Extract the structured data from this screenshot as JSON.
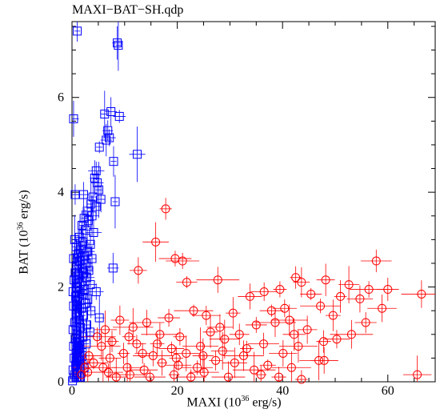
{
  "chart_data": {
    "type": "scatter",
    "title": "MAXI−BAT−SH.qdp",
    "xlabel_main": "MAXI (10",
    "xlabel_exp": "36",
    "xlabel_tail": " erg/s)",
    "ylabel_main": "BAT (10",
    "ylabel_exp": "36",
    "ylabel_tail": " erg/s)",
    "xlim": [
      0,
      69
    ],
    "ylim": [
      0,
      7.6
    ],
    "xticks": [
      0,
      20,
      40,
      60
    ],
    "yticks": [
      0,
      2,
      4,
      6
    ],
    "grid": false,
    "series": [
      {
        "marker": "square",
        "color": "#0000ff",
        "points": [
          [
            0.3,
            5.55
          ],
          [
            1.0,
            7.4
          ],
          [
            8.6,
            7.15
          ],
          [
            8.8,
            7.1
          ],
          [
            7.4,
            5.7
          ],
          [
            6.2,
            5.65
          ],
          [
            9.0,
            5.6
          ],
          [
            6.8,
            5.3
          ],
          [
            7.1,
            5.15
          ],
          [
            6.5,
            5.1
          ],
          [
            5.2,
            4.95
          ],
          [
            12.4,
            4.8
          ],
          [
            7.9,
            4.65
          ],
          [
            4.6,
            4.45
          ],
          [
            4.3,
            4.3
          ],
          [
            4.8,
            4.2
          ],
          [
            5.1,
            4.05
          ],
          [
            0.6,
            3.95
          ],
          [
            2.2,
            3.95
          ],
          [
            4.0,
            3.9
          ],
          [
            5.5,
            3.85
          ],
          [
            8.2,
            3.8
          ],
          [
            3.6,
            3.75
          ],
          [
            4.6,
            3.7
          ],
          [
            2.9,
            3.6
          ],
          [
            3.8,
            3.5
          ],
          [
            2.3,
            3.45
          ],
          [
            3.1,
            3.4
          ],
          [
            1.9,
            3.3
          ],
          [
            2.6,
            3.2
          ],
          [
            4.1,
            3.15
          ],
          [
            1.4,
            3.05
          ],
          [
            0.5,
            3.0
          ],
          [
            2.1,
            2.95
          ],
          [
            3.5,
            2.9
          ],
          [
            0.8,
            2.85
          ],
          [
            1.7,
            2.8
          ],
          [
            2.9,
            2.75
          ],
          [
            1.2,
            2.7
          ],
          [
            2.4,
            2.65
          ],
          [
            0.3,
            2.6
          ],
          [
            3.8,
            2.6
          ],
          [
            1.5,
            2.55
          ],
          [
            2.7,
            2.5
          ],
          [
            0.9,
            2.45
          ],
          [
            1.9,
            2.4
          ],
          [
            7.8,
            2.4
          ],
          [
            3.2,
            2.35
          ],
          [
            0.6,
            2.3
          ],
          [
            2.2,
            2.3
          ],
          [
            1.3,
            2.25
          ],
          [
            2.8,
            2.2
          ],
          [
            0.4,
            2.15
          ],
          [
            1.7,
            2.1
          ],
          [
            3.5,
            2.05
          ],
          [
            0.9,
            2.0
          ],
          [
            2.4,
            1.95
          ],
          [
            0.2,
            1.9
          ],
          [
            1.4,
            1.9
          ],
          [
            4.6,
            1.9
          ],
          [
            2.0,
            1.85
          ],
          [
            0.7,
            1.8
          ],
          [
            3.0,
            1.75
          ],
          [
            1.1,
            1.7
          ],
          [
            2.5,
            1.65
          ],
          [
            0.3,
            1.6
          ],
          [
            1.8,
            1.55
          ],
          [
            3.6,
            1.5
          ],
          [
            0.8,
            1.45
          ],
          [
            2.2,
            1.4
          ],
          [
            5.2,
            1.35
          ],
          [
            1.3,
            1.3
          ],
          [
            0.5,
            1.25
          ],
          [
            2.8,
            1.2
          ],
          [
            1.6,
            1.15
          ],
          [
            0.2,
            1.1
          ],
          [
            3.4,
            1.05
          ],
          [
            1.0,
            1.0
          ],
          [
            2.1,
            0.95
          ],
          [
            0.6,
            0.9
          ],
          [
            1.5,
            0.85
          ],
          [
            2.7,
            0.8
          ],
          [
            0.3,
            0.75
          ],
          [
            1.2,
            0.7
          ],
          [
            0.8,
            0.6
          ],
          [
            1.9,
            0.55
          ],
          [
            0.4,
            0.5
          ],
          [
            1.3,
            0.45
          ],
          [
            0.7,
            0.35
          ],
          [
            2.3,
            0.3
          ],
          [
            0.2,
            0.25
          ],
          [
            1.0,
            0.2
          ],
          [
            0.5,
            0.15
          ],
          [
            0.3,
            0.08
          ],
          [
            1.6,
            0.1
          ],
          [
            0.1,
            0.02
          ]
        ]
      },
      {
        "marker": "circle",
        "color": "#ff0000",
        "points": [
          [
            17.8,
            3.65
          ],
          [
            15.9,
            2.95
          ],
          [
            19.6,
            2.6
          ],
          [
            21.0,
            2.55
          ],
          [
            12.6,
            2.35
          ],
          [
            21.8,
            2.1
          ],
          [
            27.7,
            2.15
          ],
          [
            42.5,
            2.2
          ],
          [
            43.6,
            2.1
          ],
          [
            48.2,
            2.15
          ],
          [
            52.6,
            2.05
          ],
          [
            57.8,
            2.55
          ],
          [
            56.4,
            1.95
          ],
          [
            60.0,
            1.95
          ],
          [
            66.4,
            1.85
          ],
          [
            39.5,
            1.95
          ],
          [
            36.5,
            1.9
          ],
          [
            33.8,
            1.8
          ],
          [
            45.4,
            1.85
          ],
          [
            51.0,
            1.8
          ],
          [
            54.7,
            1.75
          ],
          [
            47.2,
            1.6
          ],
          [
            40.4,
            1.55
          ],
          [
            37.9,
            1.5
          ],
          [
            30.6,
            1.45
          ],
          [
            23.1,
            1.5
          ],
          [
            25.5,
            1.4
          ],
          [
            18.4,
            1.35
          ],
          [
            14.2,
            1.25
          ],
          [
            9.1,
            1.3
          ],
          [
            11.6,
            1.15
          ],
          [
            6.3,
            1.1
          ],
          [
            16.7,
            1.0
          ],
          [
            20.5,
            0.95
          ],
          [
            26.3,
            1.05
          ],
          [
            29.0,
            0.9
          ],
          [
            31.8,
            1.0
          ],
          [
            35.0,
            1.2
          ],
          [
            38.6,
            1.25
          ],
          [
            41.3,
            1.3
          ],
          [
            44.7,
            1.1
          ],
          [
            49.6,
            1.4
          ],
          [
            53.1,
            1.0
          ],
          [
            55.8,
            1.25
          ],
          [
            58.9,
            1.55
          ],
          [
            47.8,
            0.85
          ],
          [
            43.0,
            0.75
          ],
          [
            40.1,
            0.6
          ],
          [
            36.4,
            0.8
          ],
          [
            33.2,
            0.7
          ],
          [
            28.6,
            0.65
          ],
          [
            24.4,
            0.75
          ],
          [
            21.7,
            0.6
          ],
          [
            18.9,
            0.7
          ],
          [
            15.4,
            0.55
          ],
          [
            12.3,
            0.8
          ],
          [
            9.8,
            0.6
          ],
          [
            7.2,
            0.5
          ],
          [
            5.6,
            0.75
          ],
          [
            4.1,
            0.4
          ],
          [
            3.2,
            0.55
          ],
          [
            2.4,
            0.3
          ],
          [
            1.8,
            0.15
          ],
          [
            6.9,
            0.2
          ],
          [
            10.5,
            0.3
          ],
          [
            13.7,
            0.25
          ],
          [
            17.1,
            0.4
          ],
          [
            20.2,
            0.35
          ],
          [
            23.8,
            0.3
          ],
          [
            27.3,
            0.45
          ],
          [
            30.9,
            0.4
          ],
          [
            34.6,
            0.25
          ],
          [
            37.2,
            0.35
          ],
          [
            46.9,
            0.45
          ],
          [
            41.7,
            0.3
          ],
          [
            25.1,
            0.2
          ],
          [
            19.4,
            0.15
          ],
          [
            14.8,
            0.1
          ],
          [
            11.0,
            0.15
          ],
          [
            8.4,
            0.1
          ],
          [
            22.6,
            0.1
          ],
          [
            29.7,
            0.1
          ],
          [
            35.9,
            0.15
          ],
          [
            39.3,
            0.1
          ],
          [
            43.6,
            0.05
          ],
          [
            47.9,
            0.45
          ],
          [
            65.6,
            0.15
          ],
          [
            7.6,
            0.85
          ],
          [
            10.8,
            0.95
          ],
          [
            13.4,
            0.6
          ],
          [
            16.2,
            0.8
          ],
          [
            19.8,
            0.5
          ],
          [
            24.9,
            0.55
          ],
          [
            28.1,
            1.15
          ],
          [
            32.6,
            0.55
          ],
          [
            42.2,
            1.0
          ],
          [
            50.3,
            0.9
          ],
          [
            4.8,
            0.95
          ],
          [
            3.0,
            0.2
          ],
          [
            5.9,
            0.3
          ]
        ]
      }
    ]
  }
}
